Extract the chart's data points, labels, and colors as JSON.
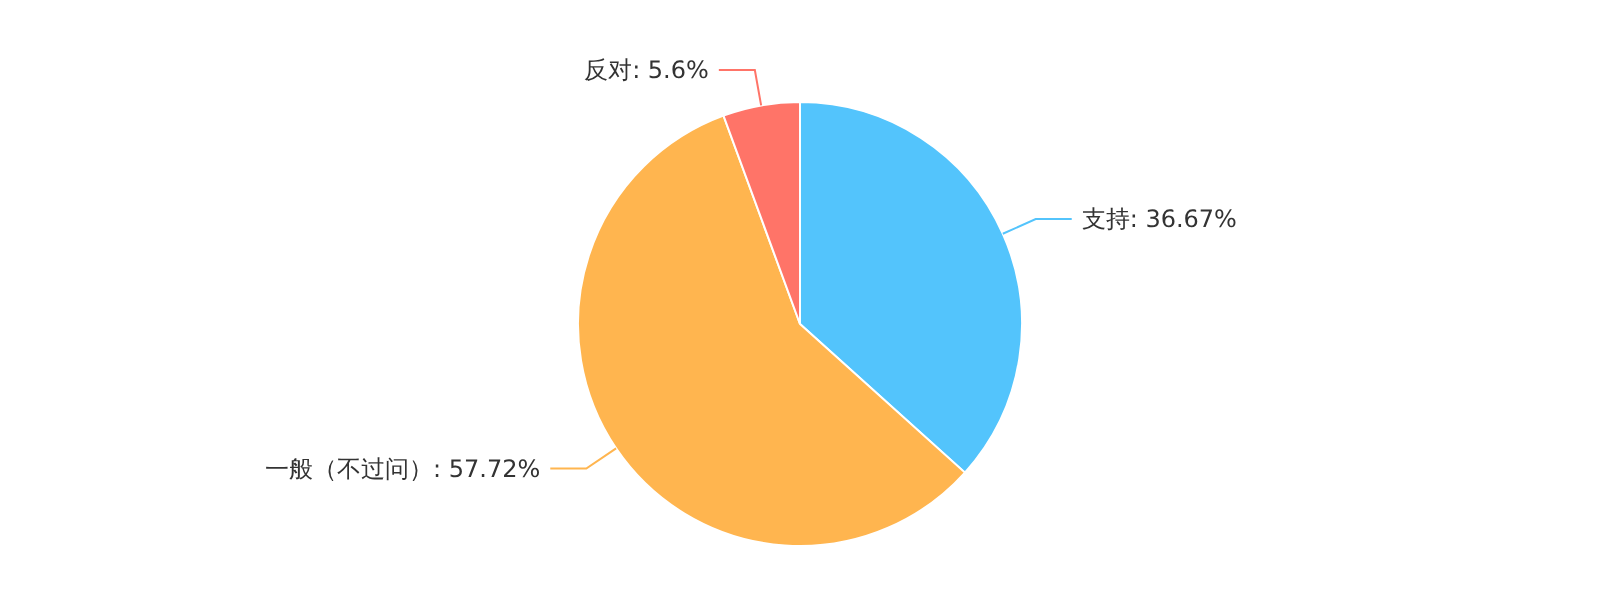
{
  "chart_data": {
    "type": "pie",
    "categories": [
      "支持",
      "一般（不过问）",
      "反对"
    ],
    "values": [
      36.67,
      57.72,
      5.6
    ],
    "colors": [
      "#53c4fc",
      "#ffb54f",
      "#ff7468"
    ],
    "value_labels": [
      ": 36.67%",
      ": 57.72%",
      ": 5.6%"
    ]
  }
}
